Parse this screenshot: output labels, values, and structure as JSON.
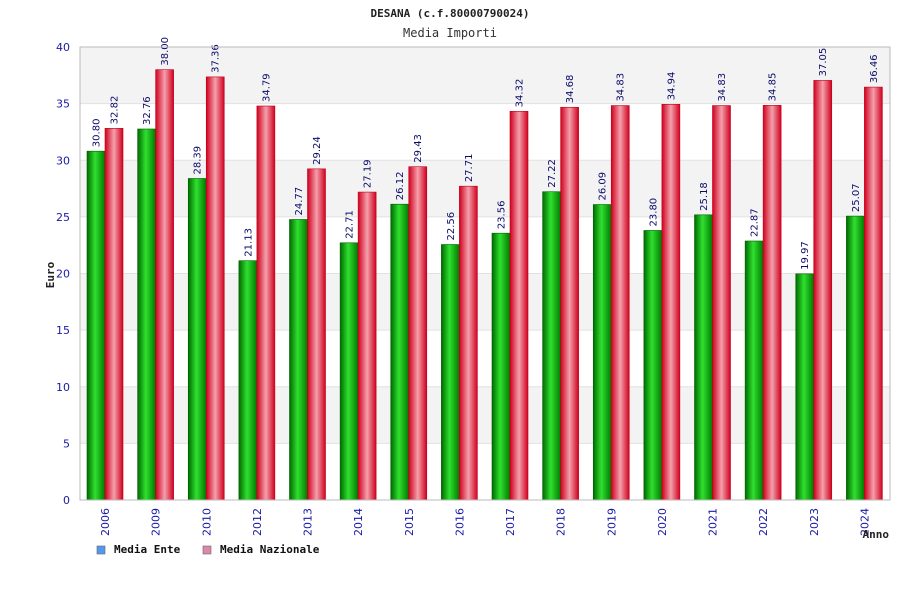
{
  "chart_data": {
    "type": "bar",
    "title": "DESANA (c.f.80000790024)",
    "subtitle": "Media Importi",
    "xlabel": "Anno",
    "ylabel": "Euro",
    "ylim": [
      0,
      40
    ],
    "yticks": [
      0,
      5,
      10,
      15,
      20,
      25,
      30,
      35,
      40
    ],
    "yticks_text": [
      "0",
      "5",
      "10",
      "15",
      "20",
      "25",
      "30",
      "35",
      "40"
    ],
    "grid": true,
    "legend_placement": "bottom-left",
    "categories": [
      "2006",
      "2009",
      "2010",
      "2012",
      "2013",
      "2014",
      "2015",
      "2016",
      "2017",
      "2018",
      "2019",
      "2020",
      "2021",
      "2022",
      "2023",
      "2024"
    ],
    "series": [
      {
        "name": "Media Ente",
        "color": "#00b000",
        "legend_color": "#5599ee",
        "values": [
          30.8,
          32.76,
          28.39,
          21.13,
          24.77,
          22.71,
          26.12,
          22.56,
          23.56,
          27.22,
          26.09,
          23.8,
          25.18,
          22.87,
          19.97,
          25.07
        ],
        "labels": [
          "30.80",
          "32.76",
          "28.39",
          "21.13",
          "24.77",
          "22.71",
          "26.12",
          "22.56",
          "23.56",
          "27.22",
          "26.09",
          "23.80",
          "25.18",
          "22.87",
          "19.97",
          "25.07"
        ]
      },
      {
        "name": "Media Nazionale",
        "color": "#e0102a",
        "legend_color": "#dd88aa",
        "values": [
          32.82,
          38.0,
          37.36,
          34.79,
          29.24,
          27.19,
          29.43,
          27.71,
          34.32,
          34.68,
          34.83,
          34.94,
          34.83,
          34.85,
          37.05,
          36.46
        ],
        "labels": [
          "32.82",
          "38.00",
          "37.36",
          "34.79",
          "29.24",
          "27.19",
          "29.43",
          "27.71",
          "34.32",
          "34.68",
          "34.83",
          "34.94",
          "34.83",
          "34.85",
          "37.05",
          "36.46"
        ]
      }
    ]
  }
}
